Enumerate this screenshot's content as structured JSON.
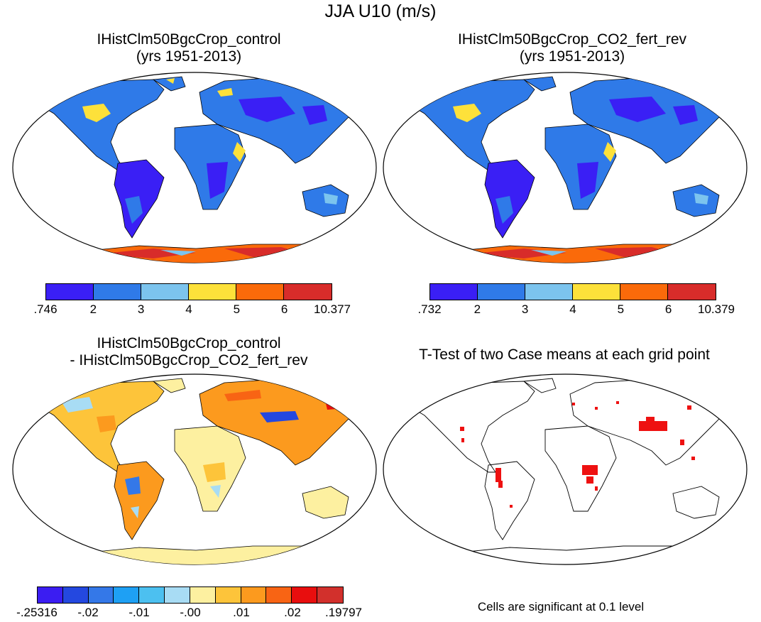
{
  "title": "JJA U10 (m/s)",
  "panels": [
    {
      "title_line1": "IHistClm50BgcCrop_control",
      "title_line2": "(yrs 1951-2013)"
    },
    {
      "title_line1": "IHistClm50BgcCrop_CO2_fert_rev",
      "title_line2": "(yrs 1951-2013)"
    },
    {
      "title_line1": "IHistClm50BgcCrop_control",
      "title_line2": "- IHistClm50BgcCrop_CO2_fert_rev"
    },
    {
      "title_line1": "T-Test of two Case means at each grid point",
      "title_line2": ""
    }
  ],
  "colorbar1": {
    "colors": [
      "#3a1ff5",
      "#2f7ae8",
      "#7cc4ee",
      "#fde13a",
      "#fa6a0a",
      "#d82c2a"
    ],
    "labels": [
      ".746",
      "2",
      "3",
      "4",
      "5",
      "6",
      "10.377"
    ]
  },
  "colorbar2": {
    "colors": [
      "#3a1ff5",
      "#2f7ae8",
      "#7cc4ee",
      "#fde13a",
      "#fa6a0a",
      "#d82c2a"
    ],
    "labels": [
      ".732",
      "2",
      "3",
      "4",
      "5",
      "6",
      "10.379"
    ]
  },
  "colorbar3": {
    "colors": [
      "#3b1df2",
      "#2448e0",
      "#3478e8",
      "#1ea0f4",
      "#4cc0f0",
      "#a8dcf4",
      "#fdf0a0",
      "#fdc43a",
      "#fc9a1e",
      "#f86414",
      "#e80e0e",
      "#d2302c"
    ],
    "labels": [
      "-.25316",
      "-.02",
      "-.01",
      "-.00",
      ".01",
      ".02",
      ".19797"
    ]
  },
  "note": "Cells are significant at 0.1 level"
}
